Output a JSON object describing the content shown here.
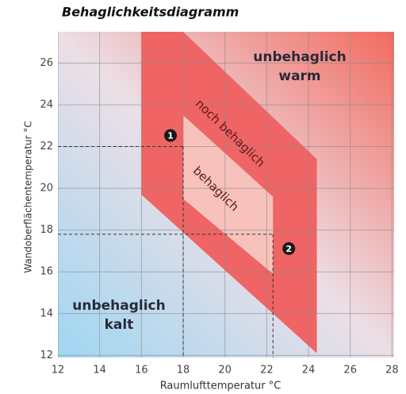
{
  "chart_data": {
    "type": "region",
    "title": "Behaglichkeitsdiagramm",
    "x_label": "Raumlufttemperatur °C",
    "y_label": "Wandoberflächentemperatur °C",
    "xlim": [
      12,
      28.1
    ],
    "ylim": [
      11.9,
      27.5
    ],
    "xticks": [
      12,
      14,
      16,
      18,
      20,
      22,
      24,
      26,
      28
    ],
    "yticks": [
      12,
      14,
      16,
      18,
      20,
      22,
      24,
      26
    ],
    "grid": true,
    "regions": [
      {
        "name": "noch behaglich",
        "color": "#ef6464",
        "x": [
          16,
          18,
          24.4,
          24.4,
          16
        ],
        "y": [
          27.5,
          27.5,
          21.4,
          12.1,
          19.7
        ]
      },
      {
        "name": "behaglich",
        "color": "#f7c2bc",
        "x": [
          18,
          22.3,
          22.3,
          18
        ],
        "y": [
          23.5,
          19.6,
          15.9,
          19.5
        ]
      }
    ],
    "points": [
      {
        "label": "1",
        "x": 18,
        "y": 22
      },
      {
        "label": "2",
        "x": 22.3,
        "y": 17.8
      }
    ],
    "annotations": [
      [
        "unbehaglich",
        "warm"
      ],
      [
        "unbehaglich",
        "kalt"
      ]
    ]
  }
}
